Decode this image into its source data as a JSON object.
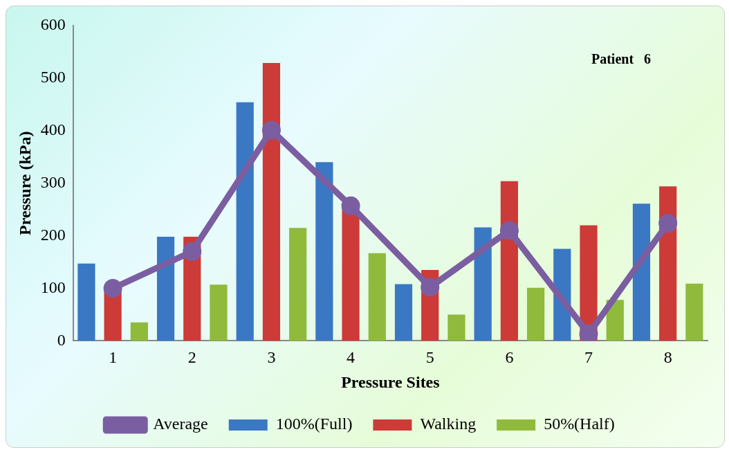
{
  "chart_data": {
    "type": "bar",
    "xlabel": "Pressure Sites",
    "ylabel": "Pressure (kPa)",
    "annotations": [
      "Patient   6"
    ],
    "categories": [
      "1",
      "2",
      "3",
      "4",
      "5",
      "6",
      "7",
      "8"
    ],
    "series": [
      {
        "name": "100%(Full)",
        "color": "#3a78c3",
        "values": [
          147,
          198,
          454,
          340,
          108,
          216,
          175,
          261
        ]
      },
      {
        "name": "Walking",
        "color": "#cc3b37",
        "values": [
          97,
          198,
          529,
          257,
          135,
          304,
          220,
          294
        ]
      },
      {
        "name": "50%(Half)",
        "color": "#8fba3c",
        "values": [
          35,
          107,
          215,
          167,
          50,
          101,
          78,
          109
        ]
      },
      {
        "name": "Average",
        "type": "line",
        "color": "#7b5ea1",
        "values": [
          100,
          170,
          401,
          257,
          102,
          210,
          13,
          224
        ]
      }
    ],
    "ylim": [
      0,
      600
    ],
    "yticks": [
      0,
      100,
      200,
      300,
      400,
      500,
      600
    ],
    "grid": false,
    "legend": "bottom",
    "marker": "circle",
    "line_style": "solid"
  }
}
